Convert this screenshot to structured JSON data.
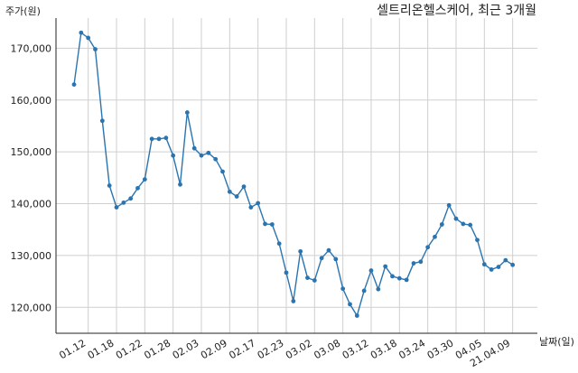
{
  "chart_data": {
    "type": "line",
    "title": "셀트리온헬스케어, 최근 3개월",
    "ylabel": "주가(원)",
    "xlabel": "날짜(일)",
    "ylim": [
      115000,
      176000
    ],
    "yticks": [
      120000,
      130000,
      140000,
      150000,
      160000,
      170000
    ],
    "ytick_labels": [
      "120,000",
      "130,000",
      "140,000",
      "150,000",
      "160,000",
      "170,000"
    ],
    "xtick_labels": [
      "01.12",
      "01.18",
      "01.22",
      "01.28",
      "02.03",
      "02.09",
      "02.17",
      "02.23",
      "03.02",
      "03.08",
      "03.12",
      "03.18",
      "03.24",
      "03.30",
      "04.05",
      "21.04.09"
    ],
    "xtick_index": [
      2,
      6,
      10,
      14,
      18,
      22,
      26,
      30,
      34,
      38,
      42,
      46,
      50,
      54,
      58,
      62
    ],
    "grid": true,
    "color": "#2a74b0",
    "values": [
      163000,
      173000,
      172000,
      169800,
      156000,
      143500,
      139300,
      140200,
      141000,
      143000,
      144700,
      152500,
      152500,
      152700,
      149300,
      143700,
      157600,
      150700,
      149300,
      149800,
      148600,
      146200,
      142300,
      141400,
      143300,
      139300,
      140100,
      136100,
      136000,
      132300,
      126700,
      121200,
      130800,
      125700,
      125200,
      129500,
      131000,
      129300,
      123600,
      120600,
      118400,
      123200,
      127100,
      123500,
      127900,
      126000,
      125600,
      125300,
      128500,
      128800,
      131600,
      133600,
      136000,
      139700,
      137100,
      136100,
      135900,
      133000,
      128300,
      127300,
      127800,
      129100,
      128200
    ]
  }
}
